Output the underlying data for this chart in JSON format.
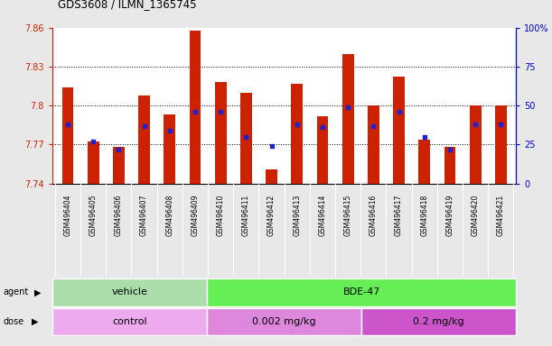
{
  "title": "GDS3608 / ILMN_1365745",
  "samples": [
    "GSM496404",
    "GSM496405",
    "GSM496406",
    "GSM496407",
    "GSM496408",
    "GSM496409",
    "GSM496410",
    "GSM496411",
    "GSM496412",
    "GSM496413",
    "GSM496414",
    "GSM496415",
    "GSM496416",
    "GSM496417",
    "GSM496418",
    "GSM496419",
    "GSM496420",
    "GSM496421"
  ],
  "transformed_count": [
    7.814,
    7.772,
    7.768,
    7.808,
    7.793,
    7.858,
    7.818,
    7.81,
    7.751,
    7.817,
    7.792,
    7.84,
    7.8,
    7.822,
    7.774,
    7.768,
    7.8,
    7.8
  ],
  "percentile_rank": [
    38,
    27,
    22,
    37,
    34,
    46,
    46,
    30,
    24,
    38,
    36,
    49,
    37,
    46,
    30,
    22,
    38,
    38
  ],
  "ylim_left": [
    7.74,
    7.86
  ],
  "ylim_right": [
    0,
    100
  ],
  "yticks_left": [
    7.74,
    7.77,
    7.8,
    7.83,
    7.86
  ],
  "yticks_right": [
    0,
    25,
    50,
    75,
    100
  ],
  "bar_color": "#cc2200",
  "dot_color": "#2222cc",
  "grid_color": "#000000",
  "plot_bg": "#ffffff",
  "fig_bg": "#e8e8e8",
  "agent_groups": [
    {
      "label": "vehicle",
      "start": 0,
      "end": 6,
      "color": "#aaddaa"
    },
    {
      "label": "BDE-47",
      "start": 6,
      "end": 18,
      "color": "#66ee55"
    }
  ],
  "dose_groups": [
    {
      "label": "control",
      "start": 0,
      "end": 6,
      "color": "#eeaaee"
    },
    {
      "label": "0.002 mg/kg",
      "start": 6,
      "end": 12,
      "color": "#dd88dd"
    },
    {
      "label": "0.2 mg/kg",
      "start": 12,
      "end": 18,
      "color": "#cc55cc"
    }
  ],
  "bar_width": 0.45,
  "base_value": 7.74,
  "right_axis_color": "#0000cc",
  "left_axis_color": "#cc2200",
  "xtick_bg": "#cccccc"
}
